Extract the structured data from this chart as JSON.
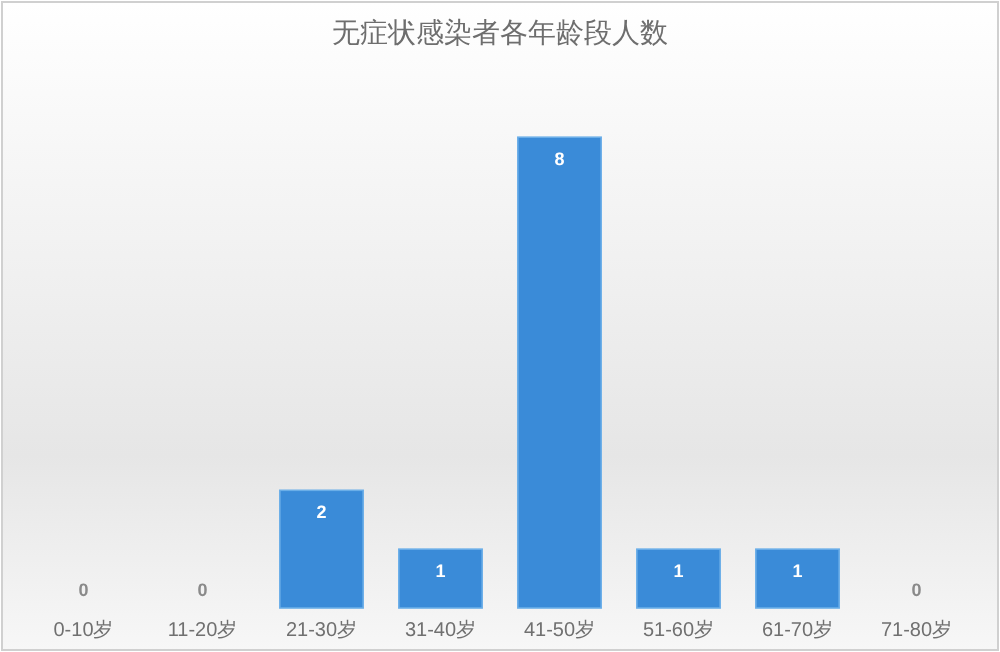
{
  "chart_data": {
    "type": "bar",
    "title": "无症状感染者各年龄段人数",
    "categories": [
      "0-10岁",
      "11-20岁",
      "21-30岁",
      "31-40岁",
      "41-50岁",
      "51-60岁",
      "61-70岁",
      "71-80岁"
    ],
    "values": [
      0,
      0,
      2,
      1,
      8,
      1,
      1,
      0
    ],
    "color": "#3a8bd8",
    "data_labels": true,
    "grid": false
  }
}
